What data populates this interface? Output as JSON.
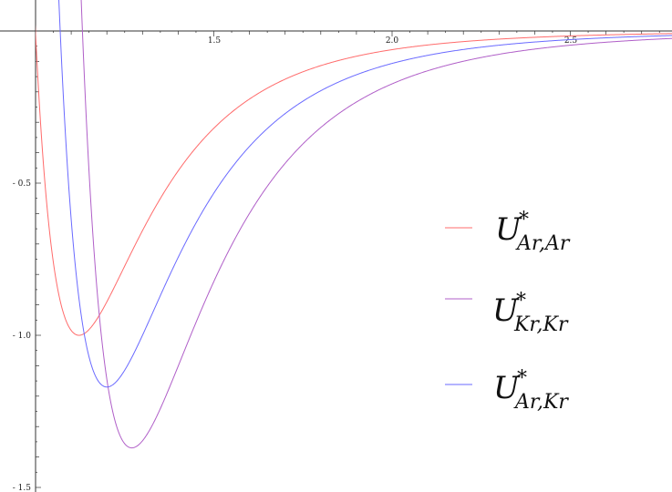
{
  "chart_data": {
    "type": "line",
    "xlim": [
      1.0,
      2.8
    ],
    "ylim": [
      -1.5,
      0.08
    ],
    "x_ticks": [
      {
        "value": 1.5,
        "label": "1.5"
      },
      {
        "value": 2.0,
        "label": "2.0"
      },
      {
        "value": 2.5,
        "label": "2.5"
      }
    ],
    "y_ticks": [
      {
        "value": -0.5,
        "label": "- 0.5"
      },
      {
        "value": -1.0,
        "label": "- 1.0"
      },
      {
        "value": -1.5,
        "label": "- 1.5"
      }
    ],
    "grid": false,
    "legend_position": "right",
    "legend": [
      {
        "main": "U",
        "sup": "*",
        "sub": "Ar,Ar",
        "color": "#ff6b6b"
      },
      {
        "main": "U",
        "sup": "*",
        "sub": "Kr,Kr",
        "color": "#b05fc8"
      },
      {
        "main": "U",
        "sup": "*",
        "sub": "Ar,Kr",
        "color": "#6a6aff"
      }
    ],
    "series": [
      {
        "color": "#ff6b6b",
        "epsilon": 1.0,
        "r_min": 1.122
      },
      {
        "color": "#b05fc8",
        "epsilon": 1.37,
        "r_min": 1.27
      },
      {
        "color": "#6a6aff",
        "epsilon": 1.17,
        "r_min": 1.2
      },
      {
        "color": "#6a6aff",
        "epsilon": 1.17,
        "r_min": 1.2
      }
    ]
  }
}
